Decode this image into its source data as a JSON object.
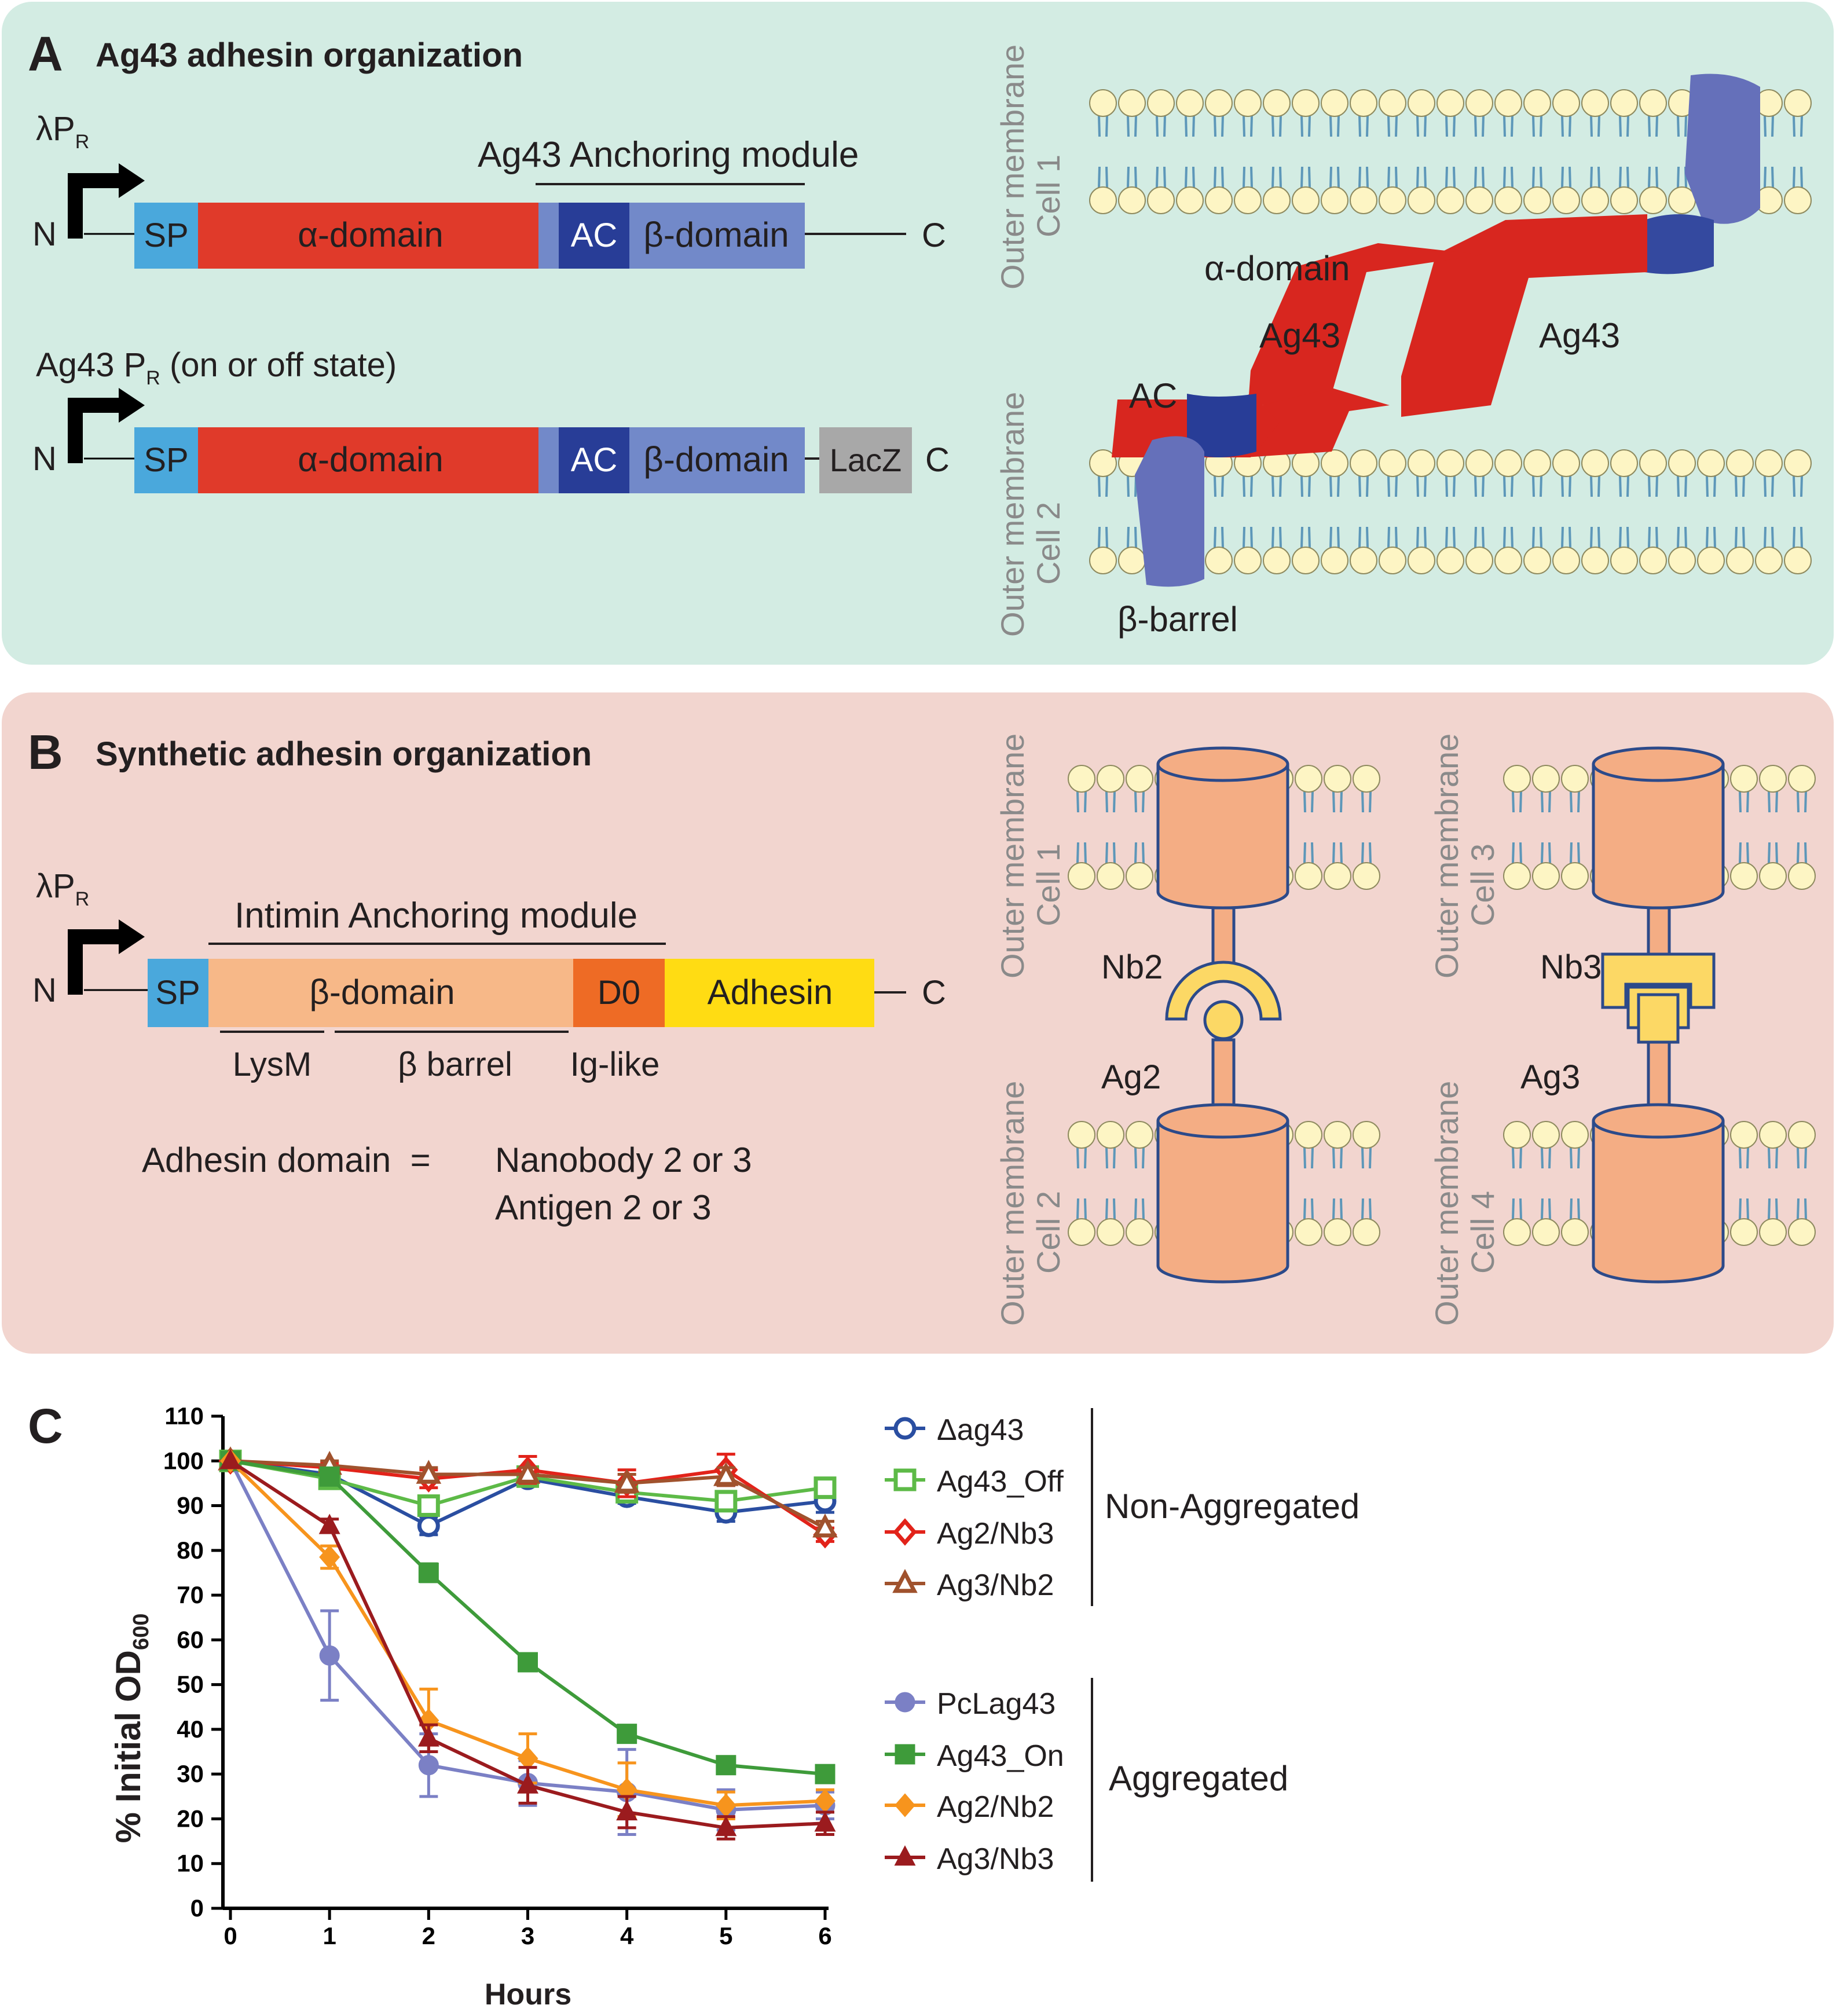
{
  "colors": {
    "panel_a_bg": "#d3ece3",
    "panel_b_bg": "#f2d5cf",
    "sp": "#4aa8dc",
    "alpha": "#e03a2a",
    "ac": "#283d97",
    "beta": "#7289c9",
    "lacz": "#a8a8a8",
    "beta_synth": "#f7b888",
    "d0": "#ee6b25",
    "adhesin": "#ffdc13",
    "cylinder": "#f4ad84",
    "nanobody": "#fcd865",
    "lipid_head": "#fdf5c4",
    "lipid_tail": "#5d97b9",
    "protein_red": "#d8261f",
    "protein_blue": "#6570ba"
  },
  "panel_a": {
    "letter": "A",
    "title": "Ag43 adhesin organization",
    "construct1": {
      "promoter": "λP",
      "promoter_sub": "R",
      "module_label": "Ag43 Anchoring module",
      "n": "N",
      "sp": "SP",
      "alpha": "α-domain",
      "ac": "AC",
      "beta": "β-domain",
      "c": "C"
    },
    "construct2": {
      "promoter": "Ag43 P",
      "promoter_sub": "R",
      "promoter_suffix": " (on or off state)",
      "n": "N",
      "sp": "SP",
      "alpha": "α-domain",
      "ac": "AC",
      "beta": "β-domain",
      "lacz": "LacZ",
      "c": "C"
    },
    "membrane1_label": [
      "Outer membrane",
      "Cell 1"
    ],
    "membrane2_label": [
      "Outer membrane",
      "Cell 2"
    ],
    "alpha_label": "α-domain",
    "ag43_left": "Ag43",
    "ag43_right": "Ag43",
    "ac_label": "AC",
    "barrel_label": "β-barrel"
  },
  "panel_b": {
    "letter": "B",
    "title": "Synthetic adhesin organization",
    "construct": {
      "promoter": "λP",
      "promoter_sub": "R",
      "module_label": "Intimin Anchoring module",
      "n": "N",
      "sp": "SP",
      "beta": "β-domain",
      "d0": "D0",
      "adhesin": "Adhesin",
      "c": "C",
      "lysm": "LysM",
      "barrel": "β barrel",
      "iglike": "Ig-like"
    },
    "adhesin_eq_left": "Adhesin domain  =",
    "adhesin_eq_line1": "Nanobody 2 or 3",
    "adhesin_eq_line2": "Antigen 2 or 3",
    "pair1": {
      "top_label": [
        "Outer membrane",
        "Cell 1"
      ],
      "bottom_label": [
        "Outer membrane",
        "Cell 2"
      ],
      "nb": "Nb2",
      "ag": "Ag2"
    },
    "pair2": {
      "top_label": [
        "Outer membrane",
        "Cell 3"
      ],
      "bottom_label": [
        "Outer membrane",
        "Cell 4"
      ],
      "nb": "Nb3",
      "ag": "Ag3"
    }
  },
  "panel_c": {
    "letter": "C",
    "group_non": "Non-Aggregated",
    "group_agg": "Aggregated"
  },
  "chart_data": {
    "type": "line",
    "xlabel": "Hours",
    "ylabel": "% Initial OD",
    "ylabel_sub": "600",
    "x": [
      0,
      1,
      2,
      3,
      4,
      5,
      6
    ],
    "xlim": [
      0,
      6
    ],
    "ylim": [
      0,
      110
    ],
    "yticks": [
      0,
      10,
      20,
      30,
      40,
      50,
      60,
      70,
      80,
      90,
      100,
      110
    ],
    "xticks": [
      0,
      1,
      2,
      3,
      4,
      5,
      6
    ],
    "grid": false,
    "legend_position": "right",
    "series": [
      {
        "name": "Δag43",
        "color": "#2a4ea1",
        "marker": "circle-open",
        "values": [
          100,
          97,
          85.5,
          96,
          92,
          88.5,
          91
        ],
        "errors": [
          0,
          1,
          2,
          1.5,
          1.5,
          2,
          2.5
        ]
      },
      {
        "name": "Ag43_Off",
        "color": "#5dba47",
        "marker": "square-open",
        "values": [
          100,
          96,
          90,
          96.5,
          93,
          91,
          94
        ],
        "errors": [
          0,
          1,
          2,
          1.5,
          2,
          2,
          1.5
        ]
      },
      {
        "name": "Ag2/Nb3",
        "color": "#e2231a",
        "marker": "diamond-open",
        "values": [
          100,
          98.5,
          96,
          98,
          95,
          98,
          83.5
        ],
        "errors": [
          0,
          1,
          2,
          3,
          3,
          3.5,
          1.5
        ]
      },
      {
        "name": "Ag3/Nb2",
        "color": "#a0522d",
        "marker": "triangle-open",
        "values": [
          100,
          99,
          97,
          97,
          95,
          96.5,
          85
        ],
        "errors": [
          0,
          1,
          1.5,
          1.5,
          2,
          2,
          1.5
        ]
      },
      {
        "name": "PcLag43",
        "color": "#7b80c5",
        "marker": "circle",
        "values": [
          100,
          56.5,
          32,
          28,
          26,
          22,
          23
        ],
        "errors": [
          0,
          10,
          7,
          5,
          9.5,
          4.5,
          3
        ]
      },
      {
        "name": "Ag43_On",
        "color": "#3e9b3a",
        "marker": "square",
        "values": [
          100,
          96.5,
          75,
          55,
          39,
          32,
          30
        ],
        "errors": [
          0,
          1.5,
          2,
          1.5,
          1.5,
          1.5,
          1.5
        ]
      },
      {
        "name": "Ag2/Nb2",
        "color": "#f7941d",
        "marker": "diamond",
        "values": [
          100,
          78.5,
          42,
          33.5,
          26.5,
          23,
          24
        ],
        "errors": [
          0,
          2.5,
          7,
          5.5,
          6,
          3,
          2.5
        ]
      },
      {
        "name": "Ag3/Nb3",
        "color": "#9b1b1e",
        "marker": "triangle",
        "values": [
          100,
          85.5,
          38,
          27.5,
          21.5,
          18,
          19
        ],
        "errors": [
          0,
          1.5,
          3,
          4,
          3.5,
          2.5,
          2.5
        ]
      }
    ]
  }
}
